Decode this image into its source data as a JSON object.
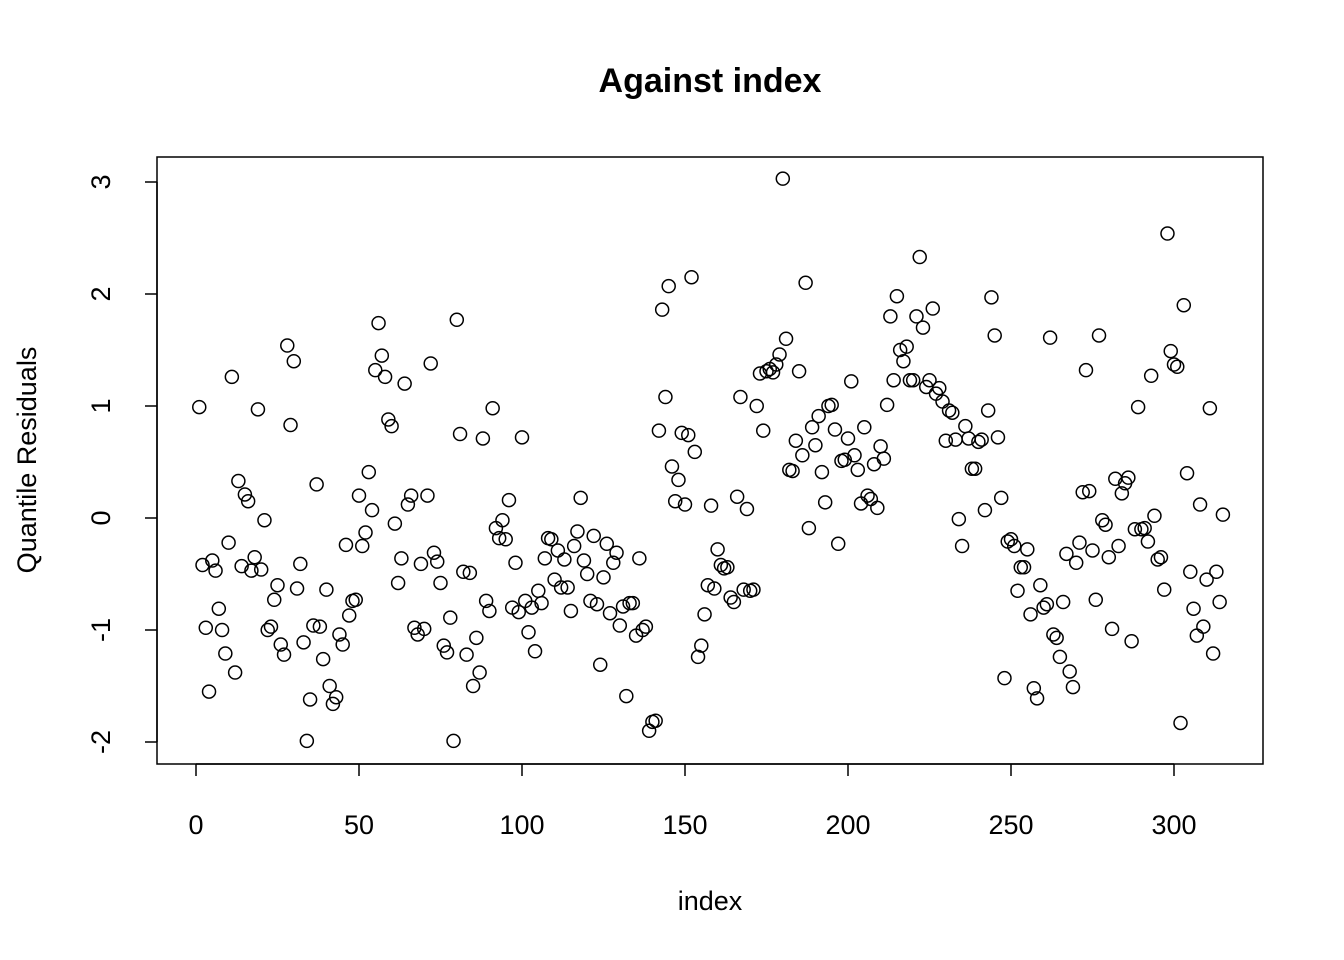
{
  "chart_data": {
    "type": "scatter",
    "title": "Against  index",
    "xlabel": "index",
    "ylabel": "Quantile Residuals",
    "xlim": [
      0,
      320
    ],
    "ylim": [
      -2,
      3
    ],
    "xticks": [
      0,
      50,
      100,
      150,
      200,
      250,
      300
    ],
    "yticks": [
      -2,
      -1,
      0,
      1,
      2,
      3
    ],
    "xtick_labels": [
      "0",
      "50",
      "100",
      "150",
      "200",
      "250",
      "300"
    ],
    "ytick_labels": [
      "-2",
      "-1",
      "0",
      "1",
      "2",
      "3"
    ],
    "grid": false,
    "legend": false,
    "marker": "open-circle",
    "y": [
      0.99,
      -0.42,
      -0.98,
      -1.55,
      -0.38,
      -0.47,
      -0.81,
      -1.0,
      -1.21,
      -0.22,
      1.26,
      -1.38,
      0.33,
      -0.43,
      0.21,
      0.15,
      -0.47,
      -0.35,
      0.97,
      -0.46,
      -0.02,
      -1.0,
      -0.97,
      -0.73,
      -0.6,
      -1.13,
      -1.22,
      1.54,
      0.83,
      1.4,
      -0.63,
      -0.41,
      -1.11,
      -1.99,
      -1.62,
      -0.96,
      0.3,
      -0.97,
      -1.26,
      -0.64,
      -1.5,
      -1.66,
      -1.6,
      -1.04,
      -1.13,
      -0.24,
      -0.87,
      -0.74,
      -0.73,
      0.2,
      -0.25,
      -0.13,
      0.41,
      0.07,
      1.32,
      1.74,
      1.45,
      1.26,
      0.88,
      0.82,
      -0.05,
      -0.58,
      -0.36,
      1.2,
      0.12,
      0.2,
      -0.98,
      -1.04,
      -0.41,
      -0.99,
      0.2,
      1.38,
      -0.31,
      -0.39,
      -0.58,
      -1.14,
      -1.2,
      -0.89,
      -1.99,
      1.77,
      0.75,
      -0.48,
      -1.22,
      -0.49,
      -1.5,
      -1.07,
      -1.38,
      0.71,
      -0.74,
      -0.83,
      0.98,
      -0.09,
      -0.18,
      -0.02,
      -0.19,
      0.16,
      -0.8,
      -0.4,
      -0.84,
      0.72,
      -0.74,
      -1.02,
      -0.8,
      -1.19,
      -0.65,
      -0.76,
      -0.36,
      -0.18,
      -0.19,
      -0.55,
      -0.29,
      -0.62,
      -0.37,
      -0.62,
      -0.83,
      -0.25,
      -0.12,
      0.18,
      -0.38,
      -0.5,
      -0.74,
      -0.16,
      -0.77,
      -1.31,
      -0.53,
      -0.23,
      -0.85,
      -0.4,
      -0.31,
      -0.96,
      -0.79,
      -1.59,
      -0.76,
      -0.76,
      -1.05,
      -0.36,
      -1.0,
      -0.97,
      -1.9,
      -1.82,
      -1.81,
      0.78,
      1.86,
      1.08,
      2.07,
      0.46,
      0.15,
      0.34,
      0.76,
      0.12,
      0.74,
      2.15,
      0.59,
      -1.24,
      -1.14,
      -0.86,
      -0.6,
      0.11,
      -0.63,
      -0.28,
      -0.42,
      -0.45,
      -0.44,
      -0.71,
      -0.75,
      0.19,
      1.08,
      -0.64,
      0.08,
      -0.65,
      -0.64,
      1.0,
      1.29,
      0.78,
      1.31,
      1.33,
      1.3,
      1.37,
      1.46,
      3.03,
      1.6,
      0.43,
      0.42,
      0.69,
      1.31,
      0.56,
      2.1,
      -0.09,
      0.81,
      0.65,
      0.91,
      0.41,
      0.14,
      1.0,
      1.01,
      0.79,
      -0.23,
      0.51,
      0.52,
      0.71,
      1.22,
      0.56,
      0.43,
      0.13,
      0.81,
      0.2,
      0.17,
      0.48,
      0.09,
      0.64,
      0.53,
      1.01,
      1.8,
      1.23,
      1.98,
      1.5,
      1.4,
      1.53,
      1.23,
      1.23,
      1.8,
      2.33,
      1.7,
      1.17,
      1.23,
      1.87,
      1.11,
      1.16,
      1.04,
      0.69,
      0.96,
      0.94,
      0.7,
      -0.01,
      -0.25,
      0.82,
      0.71,
      0.44,
      0.44,
      0.68,
      0.7,
      0.07,
      0.96,
      1.97,
      1.63,
      0.72,
      0.18,
      -1.43,
      -0.21,
      -0.19,
      -0.25,
      -0.65,
      -0.44,
      -0.44,
      -0.28,
      -0.86,
      -1.52,
      -1.61,
      -0.6,
      -0.8,
      -0.77,
      1.61,
      -1.04,
      -1.07,
      -1.24,
      -0.75,
      -0.32,
      -1.37,
      -1.51,
      -0.4,
      -0.22,
      0.23,
      1.32,
      0.24,
      -0.29,
      -0.73,
      1.63,
      -0.02,
      -0.06,
      -0.35,
      -0.99,
      0.35,
      -0.25,
      0.22,
      0.31,
      0.36,
      -1.1,
      -0.1,
      0.99,
      -0.1,
      -0.09,
      -0.21,
      1.27,
      0.02,
      -0.37,
      -0.35,
      -0.64,
      2.54,
      1.49,
      1.37,
      1.35,
      -1.83,
      1.9,
      0.4,
      -0.48,
      -0.81,
      -1.05,
      0.12,
      -0.97,
      -0.55,
      0.98,
      -1.21,
      -0.48,
      -0.75,
      0.03
    ]
  }
}
